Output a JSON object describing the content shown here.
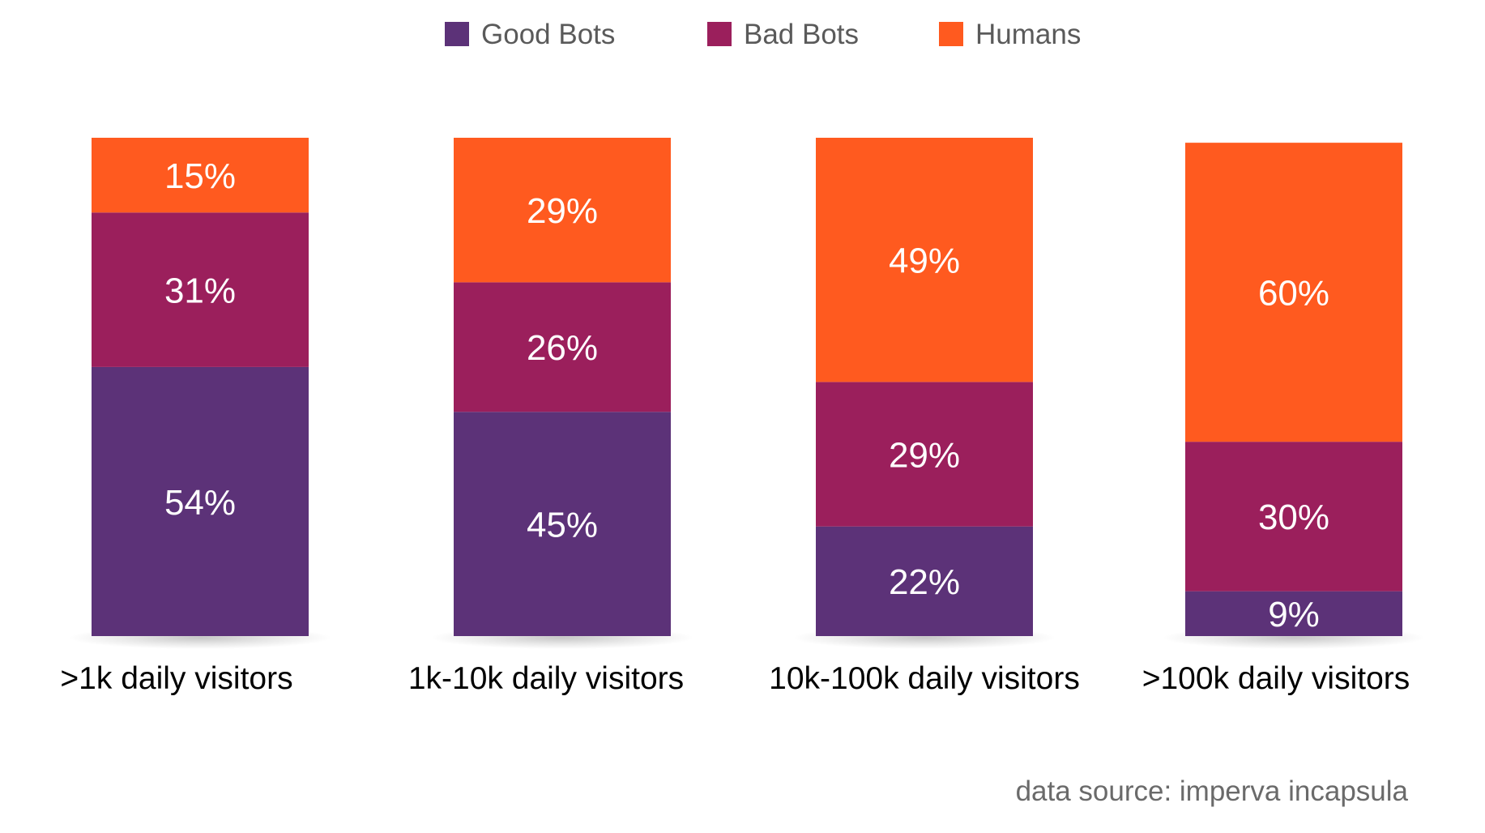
{
  "chart_data": {
    "type": "bar",
    "stacked": true,
    "categories": [
      ">1k daily visitors",
      "1k-10k daily visitors",
      "10k-100k daily visitors",
      ">100k daily visitors"
    ],
    "series": [
      {
        "name": "Good Bots",
        "color": "#5c3278",
        "values": [
          54,
          45,
          22,
          9
        ],
        "labels": [
          "54%",
          "45%",
          "22%",
          "9%"
        ]
      },
      {
        "name": "Bad Bots",
        "color": "#9b1f5c",
        "values": [
          31,
          26,
          29,
          30
        ],
        "labels": [
          "31%",
          "26%",
          "29%",
          "30%"
        ]
      },
      {
        "name": "Humans",
        "color": "#ff5a1f",
        "values": [
          15,
          29,
          49,
          60
        ],
        "labels": [
          "15%",
          "29%",
          "49%",
          "60%"
        ]
      }
    ],
    "ylim": [
      0,
      100
    ],
    "legend_position": "top-center",
    "grid": false
  },
  "source_note": "data source: imperva incapsula"
}
